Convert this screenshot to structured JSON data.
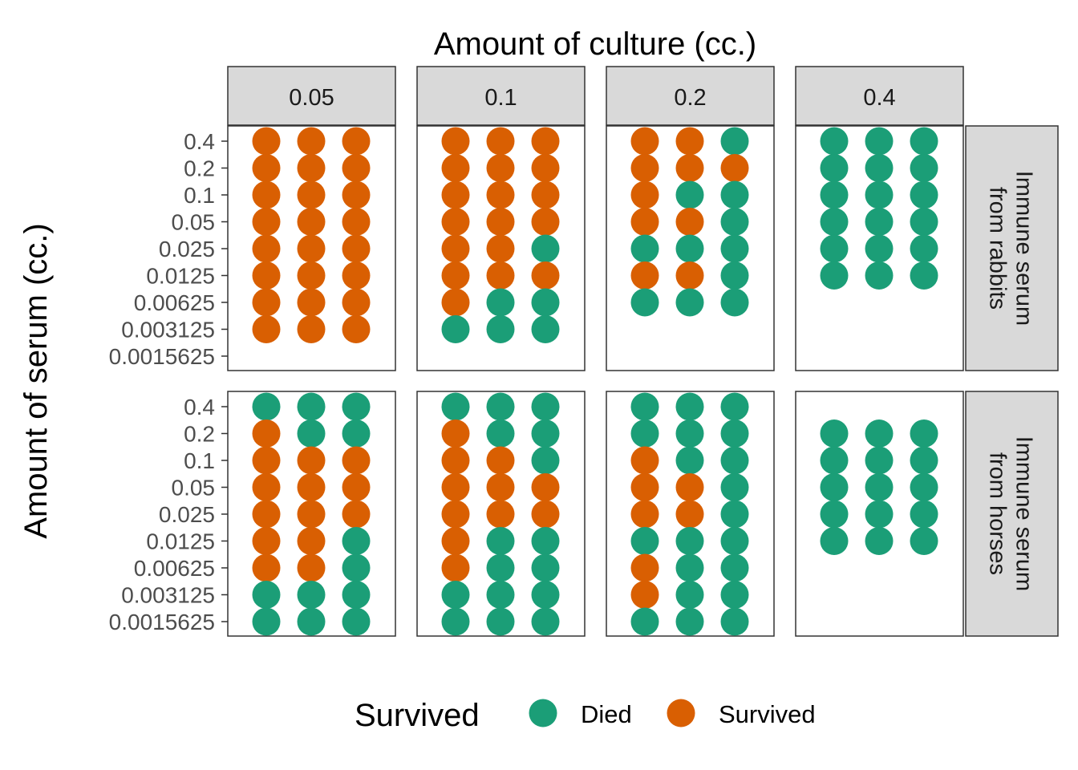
{
  "chart_data": {
    "type": "scatter",
    "title": "Amount of culture (cc.)",
    "ylabel": "Amount of serum (cc.)",
    "columns": [
      "0.05",
      "0.1",
      "0.2",
      "0.4"
    ],
    "rows": [
      "Immune serum from rabbits",
      "Immune serum from horses"
    ],
    "row_labels": [
      [
        "Immune serum",
        "from rabbits"
      ],
      [
        "Immune serum",
        "from horses"
      ]
    ],
    "y_categories": [
      "0.0015625",
      "0.003125",
      "0.00625",
      "0.0125",
      "0.025",
      "0.05",
      "0.1",
      "0.2",
      "0.4"
    ],
    "legend": {
      "title": "Survived",
      "entries": [
        {
          "code": "D",
          "label": "Died",
          "color": "#1b9e77"
        },
        {
          "code": "S",
          "label": "Survived",
          "color": "#d95f02"
        }
      ]
    },
    "panels": [
      {
        "row": 0,
        "col": 0,
        "data": {
          "0.4": "SSS",
          "0.2": "SSS",
          "0.1": "SSS",
          "0.05": "SSS",
          "0.025": "SSS",
          "0.0125": "SSS",
          "0.00625": "SSS",
          "0.003125": "SSS"
        }
      },
      {
        "row": 0,
        "col": 1,
        "data": {
          "0.4": "SSS",
          "0.2": "SSS",
          "0.1": "SSS",
          "0.05": "SSS",
          "0.025": "SSD",
          "0.0125": "SSS",
          "0.00625": "SDD",
          "0.003125": "DDD"
        }
      },
      {
        "row": 0,
        "col": 2,
        "data": {
          "0.4": "SSD",
          "0.2": "SSS",
          "0.1": "SDD",
          "0.05": "SSD",
          "0.025": "DDD",
          "0.0125": "SSD",
          "0.00625": "DDD"
        }
      },
      {
        "row": 0,
        "col": 3,
        "data": {
          "0.4": "DDD",
          "0.2": "DDD",
          "0.1": "DDD",
          "0.05": "DDD",
          "0.025": "DDD",
          "0.0125": "DDD"
        }
      },
      {
        "row": 1,
        "col": 0,
        "data": {
          "0.4": "DDD",
          "0.2": "SDD",
          "0.1": "SSS",
          "0.05": "SSS",
          "0.025": "SSS",
          "0.0125": "SSD",
          "0.00625": "SSD",
          "0.003125": "DDD",
          "0.0015625": "DDD"
        }
      },
      {
        "row": 1,
        "col": 1,
        "data": {
          "0.4": "DDD",
          "0.2": "SDD",
          "0.1": "SSD",
          "0.05": "SSS",
          "0.025": "SSS",
          "0.0125": "SDD",
          "0.00625": "SDD",
          "0.003125": "DDD",
          "0.0015625": "DDD"
        }
      },
      {
        "row": 1,
        "col": 2,
        "data": {
          "0.4": "DDD",
          "0.2": "DDD",
          "0.1": "SDD",
          "0.05": "SSD",
          "0.025": "SSD",
          "0.0125": "DDD",
          "0.00625": "SDD",
          "0.003125": "SDD",
          "0.0015625": "DDD"
        }
      },
      {
        "row": 1,
        "col": 3,
        "data": {
          "0.2": "DDD",
          "0.1": "DDD",
          "0.05": "DDD",
          "0.025": "DDD",
          "0.0125": "DDD"
        }
      }
    ]
  }
}
